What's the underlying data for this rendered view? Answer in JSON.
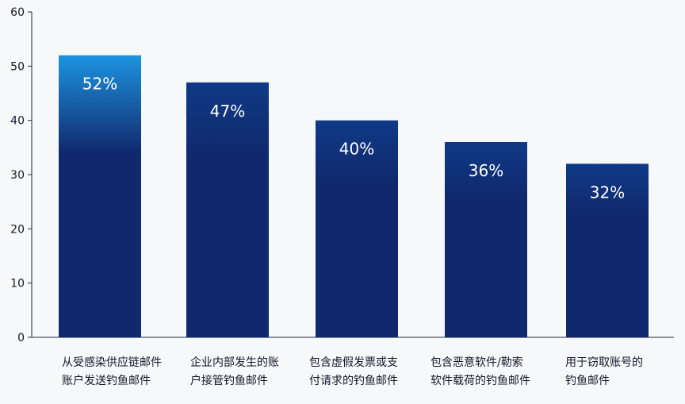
{
  "colors": {
    "background": "#f6f8fa",
    "bar_bottom": "#10286c",
    "bar_top_first": "#1d93df",
    "axis": "#1f2937",
    "text": "#111827",
    "label_text": "#ffffff"
  },
  "chart_data": {
    "type": "bar",
    "categories": [
      "从受感染供应链邮件账户发送钓鱼邮件",
      "企业内部发生的账户接管钓鱼邮件",
      "包含虚假发票或支付请求的钓鱼邮件",
      "包含恶意软件/勒索软件载荷的钓鱼邮件",
      "用于窃取账号的钓鱼邮件"
    ],
    "category_lines": [
      [
        "从受感染供应链邮件",
        "账户发送钓鱼邮件"
      ],
      [
        "企业内部发生的账",
        "户接管钓鱼邮件"
      ],
      [
        "包含虚假发票或支",
        "付请求的钓鱼邮件"
      ],
      [
        "包含恶意软件/勒索",
        "软件载荷的钓鱼邮件"
      ],
      [
        "用于窃取账号的",
        "钓鱼邮件"
      ]
    ],
    "values": [
      52,
      47,
      40,
      36,
      32
    ],
    "data_labels": [
      "52%",
      "47%",
      "40%",
      "36%",
      "32%"
    ],
    "yticks": [
      0,
      10,
      20,
      30,
      40,
      50,
      60
    ],
    "ylim": [
      0,
      60
    ],
    "title": "",
    "xlabel": "",
    "ylabel": "",
    "grid": false,
    "legend": "none"
  }
}
